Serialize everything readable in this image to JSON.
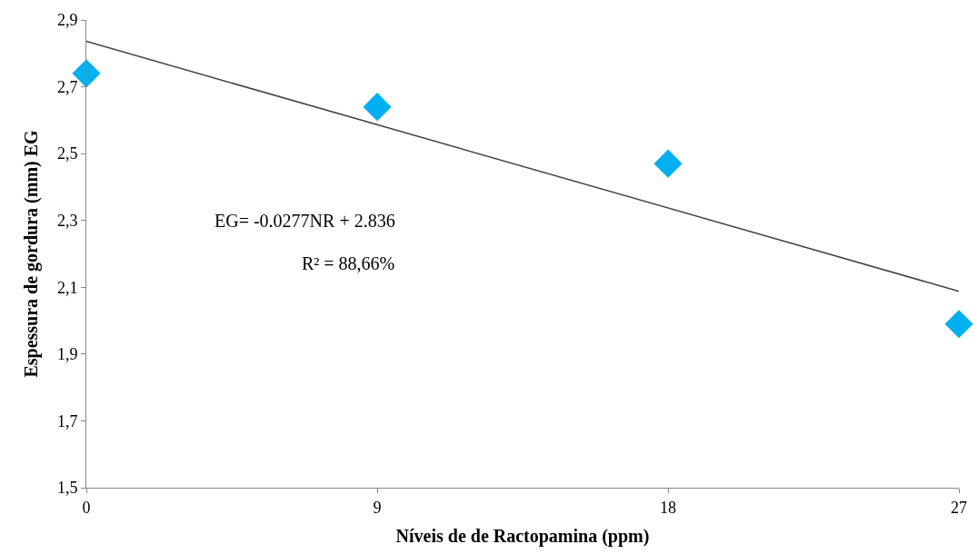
{
  "chart_data": {
    "type": "scatter",
    "xlabel": "Níveis de de Ractopamina (ppm)",
    "ylabel": "Espessura de gordura (mm) EG",
    "x": [
      0,
      9,
      18,
      27
    ],
    "series": [
      {
        "color": "#00b0f0",
        "marker": "diamond",
        "values": [
          2.74,
          2.64,
          2.47,
          1.99
        ]
      },
      {
        "type": "line",
        "color": "#404040",
        "marker": "none",
        "line_style": "solid",
        "x": [
          0,
          27
        ],
        "values": [
          2.836,
          2.088
        ]
      }
    ],
    "xlim": [
      0,
      27
    ],
    "xticks": [
      0,
      9,
      18,
      27
    ],
    "ylim": [
      1.5,
      2.9
    ],
    "yticks": [
      {
        "value": 1.5,
        "label": "1,5"
      },
      {
        "value": 1.7,
        "label": "1,7"
      },
      {
        "value": 1.9,
        "label": "1,9"
      },
      {
        "value": 2.1,
        "label": "2,1"
      },
      {
        "value": 2.3,
        "label": "2,3"
      },
      {
        "value": 2.5,
        "label": "2,5"
      },
      {
        "value": 2.7,
        "label": "2,7"
      },
      {
        "value": 2.9,
        "label": "2,9"
      }
    ],
    "annotations": [
      "EG= -0.0277NR + 2.836",
      "R² = 88,66%"
    ]
  }
}
